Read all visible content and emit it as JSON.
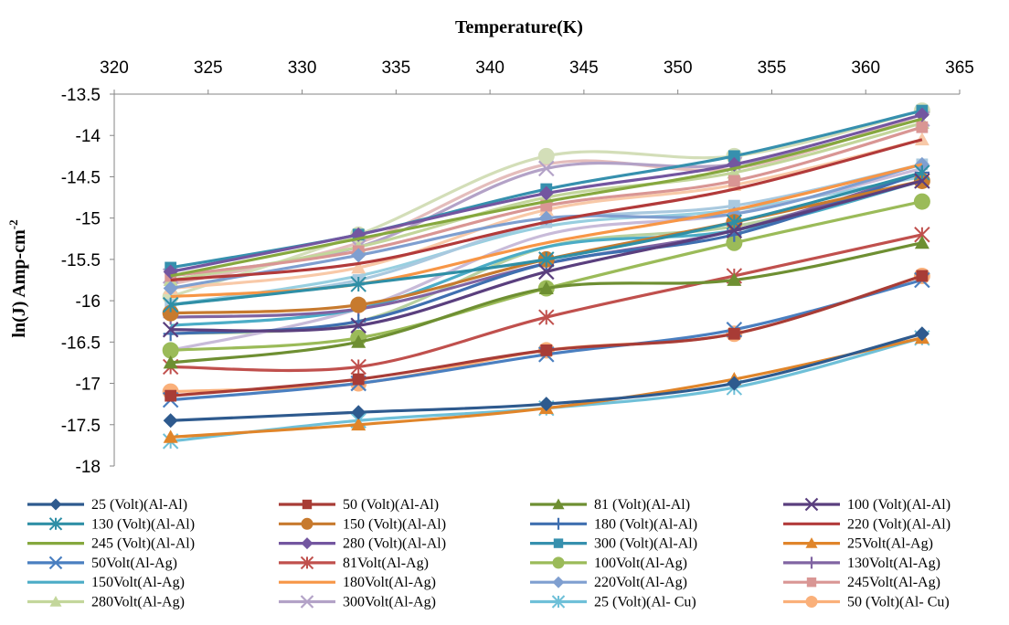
{
  "chart_data": {
    "type": "line",
    "xlabel": "Temperature(K)",
    "ylabel": "ln(J) Amp-cm",
    "ylabel_superscript": "-2",
    "x_axis_position": "top",
    "xlim": [
      320,
      365
    ],
    "ylim": [
      -18,
      -13.5
    ],
    "x_ticks": [
      "320",
      "325",
      "330",
      "335",
      "340",
      "345",
      "350",
      "355",
      "360",
      "365"
    ],
    "y_ticks": [
      "-13.5",
      "-14",
      "-14.5",
      "-15",
      "-15.5",
      "-16",
      "-16.5",
      "-17",
      "-17.5",
      "-18"
    ],
    "grid": false,
    "legend_position": "bottom",
    "x": [
      323,
      333,
      343,
      353,
      363
    ],
    "series": [
      {
        "name": "25 (Volt)(Al-Al)",
        "color": "#2E5A8E",
        "marker": "diamond",
        "values": [
          -17.45,
          -17.35,
          -17.25,
          -17.0,
          -16.4
        ]
      },
      {
        "name": "50 (Volt)(Al-Al)",
        "color": "#A83C36",
        "marker": "square",
        "values": [
          -17.15,
          -16.95,
          -16.6,
          -16.4,
          -15.7
        ]
      },
      {
        "name": "81 (Volt)(Al-Al)",
        "color": "#6E8F32",
        "marker": "triangle",
        "values": [
          -16.75,
          -16.5,
          -15.85,
          -15.75,
          -15.3
        ]
      },
      {
        "name": "100 (Volt)(Al-Al)",
        "color": "#5A3F7E",
        "marker": "x",
        "values": [
          -16.35,
          -16.3,
          -15.65,
          -15.15,
          -14.55
        ]
      },
      {
        "name": "130 (Volt)(Al-Al)",
        "color": "#2F8FA6",
        "marker": "star",
        "values": [
          -16.05,
          -15.8,
          -15.5,
          -15.05,
          -14.45
        ]
      },
      {
        "name": "150 (Volt)(Al-Al)",
        "color": "#C77A2E",
        "marker": "circle",
        "values": [
          -16.15,
          -16.05,
          -15.5,
          -15.05,
          -14.55
        ]
      },
      {
        "name": "180 (Volt)(Al-Al)",
        "color": "#3F6FB0",
        "marker": "plus",
        "values": [
          -16.4,
          -16.25,
          -15.55,
          -15.2,
          -14.45
        ]
      },
      {
        "name": "220 (Volt)(Al-Al)",
        "color": "#B23A3A",
        "marker": "none",
        "values": [
          -15.75,
          -15.55,
          -15.05,
          -14.65,
          -14.05
        ]
      },
      {
        "name": "245 (Volt)(Al-Al)",
        "color": "#86A83E",
        "marker": "none",
        "values": [
          -15.7,
          -15.25,
          -14.8,
          -14.4,
          -13.8
        ]
      },
      {
        "name": "280 (Volt)(Al-Al)",
        "color": "#7356A0",
        "marker": "diamond",
        "values": [
          -15.65,
          -15.2,
          -14.7,
          -14.35,
          -13.75
        ]
      },
      {
        "name": "300 (Volt)(Al-Al)",
        "color": "#3690AE",
        "marker": "square",
        "values": [
          -15.6,
          -15.2,
          -14.65,
          -14.25,
          -13.7
        ]
      },
      {
        "name": "25Volt(Al-Ag)",
        "color": "#E0852A",
        "marker": "triangle",
        "values": [
          -17.65,
          -17.5,
          -17.3,
          -16.95,
          -16.45
        ]
      },
      {
        "name": "50Volt(Al-Ag)",
        "color": "#4A7FC0",
        "marker": "x",
        "values": [
          -17.2,
          -17.0,
          -16.65,
          -16.35,
          -15.75
        ]
      },
      {
        "name": "81Volt(Al-Ag)",
        "color": "#C0504D",
        "marker": "star",
        "values": [
          -16.8,
          -16.8,
          -16.2,
          -15.7,
          -15.2
        ]
      },
      {
        "name": "100Volt(Al-Ag)",
        "color": "#9BBB59",
        "marker": "circle",
        "values": [
          -16.6,
          -16.45,
          -15.85,
          -15.3,
          -14.8
        ]
      },
      {
        "name": "130Volt(Al-Ag)",
        "color": "#8064A2",
        "marker": "plus",
        "values": [
          -16.2,
          -16.1,
          -15.55,
          -15.15,
          -14.45
        ]
      },
      {
        "name": "150Volt(Al-Ag)",
        "color": "#4BACC6",
        "marker": "none",
        "values": [
          -16.3,
          -16.1,
          -15.35,
          -15.15,
          -14.55
        ]
      },
      {
        "name": "180Volt(Al-Ag)",
        "color": "#F79646",
        "marker": "none",
        "values": [
          -15.95,
          -15.8,
          -15.3,
          -14.9,
          -14.35
        ]
      },
      {
        "name": "220Volt(Al-Ag)",
        "color": "#7F9FD0",
        "marker": "diamond",
        "values": [
          -15.85,
          -15.45,
          -15.0,
          -14.95,
          -14.35
        ]
      },
      {
        "name": "245Volt(Al-Ag)",
        "color": "#D99694",
        "marker": "square",
        "values": [
          -15.7,
          -15.4,
          -14.85,
          -14.55,
          -13.9
        ]
      },
      {
        "name": "280Volt(Al-Ag)",
        "color": "#C3D69B",
        "marker": "triangle",
        "values": [
          -15.75,
          -15.35,
          -14.75,
          -14.45,
          -13.85
        ]
      },
      {
        "name": "300Volt(Al-Ag)",
        "color": "#B3A2C7",
        "marker": "x",
        "values": [
          -15.7,
          -15.35,
          -14.4,
          -14.35,
          -13.8
        ]
      },
      {
        "name": "25 (Volt)(Al- Cu)",
        "color": "#6FC0D8",
        "marker": "star",
        "values": [
          -17.7,
          -17.45,
          -17.3,
          -17.05,
          -16.45
        ]
      },
      {
        "name": "50 (Volt)(Al- Cu)",
        "color": "#FAB07A",
        "marker": "circle",
        "values": [
          -17.1,
          -17.0,
          -16.6,
          -16.4,
          -15.7
        ]
      },
      {
        "name": "",
        "color": "#A9C9DF",
        "marker": "square",
        "values": [
          -16.05,
          -15.75,
          -15.05,
          -14.85,
          -14.35
        ]
      },
      {
        "name": "",
        "color": "#F8C9A8",
        "marker": "triangle",
        "values": [
          -15.85,
          -15.6,
          -14.9,
          -14.6,
          -14.05
        ]
      },
      {
        "name": "",
        "color": "#D3DEB8",
        "marker": "circle",
        "values": [
          -15.95,
          -15.2,
          -14.25,
          -14.25,
          -13.7
        ]
      },
      {
        "name": "",
        "color": "#E4BDBC",
        "marker": "none",
        "values": [
          -15.8,
          -15.3,
          -14.35,
          -14.4,
          -13.75
        ]
      },
      {
        "name": "",
        "color": "#C8BBD9",
        "marker": "none",
        "values": [
          -16.6,
          -16.1,
          -15.2,
          -14.95,
          -14.4
        ]
      },
      {
        "name": "",
        "color": "#98CFE0",
        "marker": "none",
        "values": [
          -16.05,
          -15.7,
          -15.1,
          -14.9,
          -14.5
        ]
      },
      {
        "name": "",
        "color": "#B7D0A0",
        "marker": "none",
        "values": [
          -16.4,
          -16.25,
          -15.35,
          -15.1,
          -14.55
        ]
      }
    ]
  }
}
